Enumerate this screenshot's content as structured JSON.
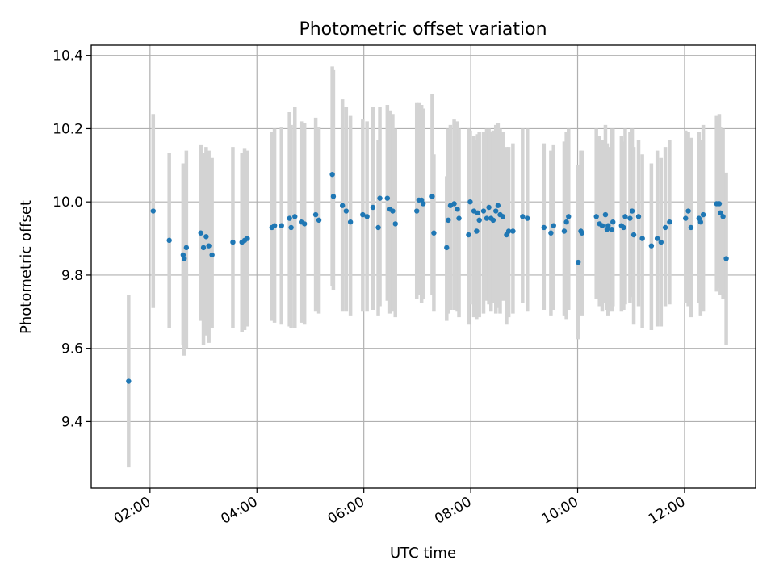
{
  "chart_data": {
    "type": "scatter",
    "title": "Photometric offset variation",
    "xlabel": "UTC time",
    "ylabel": "Photometric offset",
    "x_unit": "hours UTC",
    "xlim": [
      0.9,
      13.33
    ],
    "ylim": [
      9.218,
      10.428
    ],
    "grid": true,
    "xticks": [
      {
        "value": 2,
        "label": "02:00"
      },
      {
        "value": 4,
        "label": "04:00"
      },
      {
        "value": 6,
        "label": "06:00"
      },
      {
        "value": 8,
        "label": "08:00"
      },
      {
        "value": 10,
        "label": "10:00"
      },
      {
        "value": 12,
        "label": "12:00"
      }
    ],
    "yticks": [
      {
        "value": 9.4,
        "label": "9.4"
      },
      {
        "value": 9.6,
        "label": "9.6"
      },
      {
        "value": 9.8,
        "label": "9.8"
      },
      {
        "value": 10.0,
        "label": "10.0"
      },
      {
        "value": 10.2,
        "label": "10.2"
      },
      {
        "value": 10.4,
        "label": "10.4"
      }
    ],
    "marker_color": "#1f77b4",
    "errorbar_color": "#d3d3d3",
    "series": [
      {
        "name": "offset",
        "x": [
          1.6,
          2.06,
          2.36,
          2.62,
          2.64,
          2.68,
          2.95,
          3.0,
          3.05,
          3.1,
          3.16,
          3.55,
          3.72,
          3.77,
          3.82,
          4.28,
          4.33,
          4.46,
          4.61,
          4.64,
          4.71,
          4.83,
          4.89,
          5.1,
          5.16,
          5.41,
          5.43,
          5.6,
          5.67,
          5.75,
          5.98,
          6.06,
          6.17,
          6.27,
          6.3,
          6.44,
          6.49,
          6.54,
          6.59,
          6.99,
          7.03,
          7.08,
          7.11,
          7.28,
          7.31,
          7.55,
          7.58,
          7.62,
          7.69,
          7.75,
          7.78,
          7.96,
          7.99,
          8.06,
          8.11,
          8.13,
          8.16,
          8.24,
          8.3,
          8.34,
          8.38,
          8.42,
          8.47,
          8.51,
          8.55,
          8.6,
          8.67,
          8.71,
          8.79,
          8.97,
          9.06,
          9.37,
          9.5,
          9.55,
          9.75,
          9.79,
          9.83,
          10.01,
          10.06,
          10.08,
          10.35,
          10.41,
          10.46,
          10.52,
          10.55,
          10.57,
          10.64,
          10.66,
          10.82,
          10.86,
          10.89,
          10.98,
          11.02,
          11.05,
          11.14,
          11.21,
          11.38,
          11.49,
          11.56,
          11.64,
          11.72,
          12.02,
          12.07,
          12.12,
          12.27,
          12.3,
          12.35,
          12.6,
          12.65,
          12.67,
          12.72,
          12.78
        ],
        "y": [
          9.51,
          9.975,
          9.895,
          9.855,
          9.845,
          9.875,
          9.915,
          9.875,
          9.905,
          9.88,
          9.855,
          9.89,
          9.89,
          9.895,
          9.9,
          9.93,
          9.935,
          9.935,
          9.955,
          9.93,
          9.96,
          9.945,
          9.94,
          9.965,
          9.95,
          10.075,
          10.015,
          9.99,
          9.975,
          9.945,
          9.965,
          9.96,
          9.985,
          9.93,
          10.01,
          10.01,
          9.98,
          9.975,
          9.94,
          9.975,
          10.005,
          10.005,
          9.995,
          10.015,
          9.915,
          9.875,
          9.95,
          9.99,
          9.995,
          9.98,
          9.955,
          9.91,
          10.0,
          9.975,
          9.92,
          9.97,
          9.95,
          9.975,
          9.955,
          9.985,
          9.955,
          9.95,
          9.975,
          9.99,
          9.965,
          9.96,
          9.91,
          9.92,
          9.92,
          9.96,
          9.955,
          9.93,
          9.915,
          9.935,
          9.92,
          9.945,
          9.96,
          9.835,
          9.92,
          9.915,
          9.96,
          9.94,
          9.935,
          9.965,
          9.925,
          9.935,
          9.925,
          9.945,
          9.935,
          9.93,
          9.96,
          9.955,
          9.975,
          9.91,
          9.96,
          9.9,
          9.88,
          9.9,
          9.89,
          9.93,
          9.945,
          9.955,
          9.975,
          9.93,
          9.955,
          9.945,
          9.965,
          9.995,
          9.995,
          9.97,
          9.96,
          9.845
        ],
        "y_err_low": [
          9.275,
          9.71,
          9.655,
          9.61,
          9.58,
          9.6,
          9.675,
          9.61,
          9.635,
          9.615,
          9.655,
          9.655,
          9.645,
          9.65,
          9.66,
          9.675,
          9.67,
          9.665,
          9.66,
          9.655,
          9.655,
          9.67,
          9.665,
          9.7,
          9.695,
          9.77,
          9.76,
          9.7,
          9.7,
          9.69,
          9.7,
          9.7,
          9.705,
          9.69,
          9.715,
          9.73,
          9.695,
          9.7,
          9.685,
          9.735,
          9.745,
          9.725,
          9.735,
          9.745,
          9.7,
          9.675,
          9.695,
          9.705,
          9.705,
          9.7,
          9.685,
          9.665,
          9.72,
          9.685,
          9.68,
          9.705,
          9.685,
          9.695,
          9.73,
          9.72,
          9.7,
          9.725,
          9.695,
          9.71,
          9.695,
          9.73,
          9.665,
          9.685,
          9.695,
          9.725,
          9.7,
          9.705,
          9.69,
          9.705,
          9.69,
          9.68,
          9.705,
          9.625,
          9.7,
          9.69,
          9.735,
          9.715,
          9.7,
          9.725,
          9.705,
          9.69,
          9.7,
          9.715,
          9.7,
          9.705,
          9.72,
          9.725,
          9.74,
          9.665,
          9.715,
          9.655,
          9.65,
          9.66,
          9.66,
          9.715,
          9.72,
          9.725,
          9.715,
          9.685,
          9.725,
          9.69,
          9.7,
          9.755,
          9.765,
          9.745,
          9.735,
          9.61
        ],
        "y_err_high": [
          9.745,
          10.24,
          10.135,
          10.105,
          10.095,
          10.14,
          10.155,
          10.135,
          10.15,
          10.14,
          10.12,
          10.15,
          10.135,
          10.145,
          10.14,
          10.19,
          10.2,
          10.205,
          10.245,
          10.21,
          10.26,
          10.22,
          10.215,
          10.23,
          10.205,
          10.37,
          10.36,
          10.28,
          10.26,
          10.235,
          10.225,
          10.22,
          10.26,
          10.17,
          10.26,
          10.265,
          10.25,
          10.24,
          10.2,
          10.27,
          10.27,
          10.265,
          10.255,
          10.295,
          10.13,
          10.07,
          10.2,
          10.21,
          10.225,
          10.22,
          10.2,
          10.2,
          10.195,
          10.18,
          10.17,
          10.185,
          10.19,
          10.19,
          10.2,
          10.2,
          10.19,
          10.195,
          10.21,
          10.215,
          10.2,
          10.19,
          10.15,
          10.15,
          10.16,
          10.2,
          10.2,
          10.16,
          10.14,
          10.155,
          10.165,
          10.19,
          10.2,
          10.1,
          10.14,
          10.14,
          10.2,
          10.18,
          10.17,
          10.21,
          10.16,
          10.15,
          10.2,
          10.2,
          10.18,
          10.165,
          10.2,
          10.19,
          10.2,
          10.15,
          10.17,
          10.13,
          10.105,
          10.14,
          10.12,
          10.15,
          10.17,
          10.195,
          10.19,
          10.175,
          10.19,
          10.17,
          10.21,
          10.235,
          10.24,
          10.205,
          10.2,
          10.08
        ]
      }
    ]
  }
}
